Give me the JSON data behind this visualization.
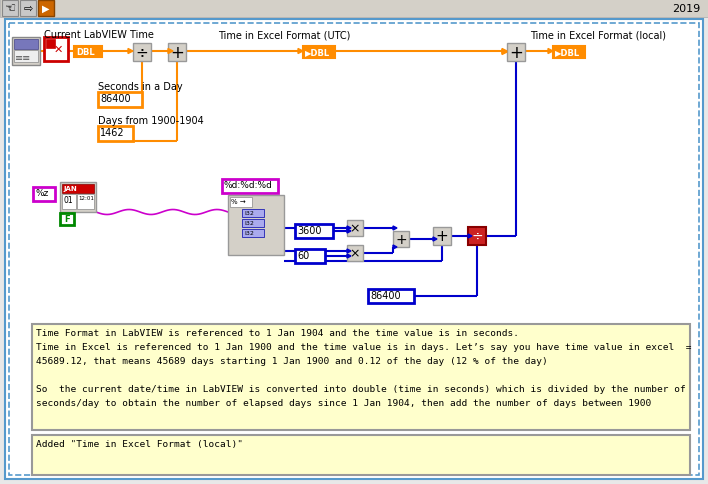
{
  "bg_color": "#e8e8e8",
  "toolbar_bg": "#d4d0c8",
  "diagram_bg": "#ffffff",
  "diagram_border_color": "#5599cc",
  "year_text": "2019",
  "note1_line1": "Time Format in LabVIEW is referenced to 1 Jan 1904 and the time value is in seconds.",
  "note1_line2": "Time in Excel is referenced to 1 Jan 1900 and the time value is in days. Let’s say you have time value in excel  =",
  "note1_line3": "45689.12, that means 45689 days starting 1 Jan 1900 and 0.12 of the day (12 % of the day)",
  "note1_line4": "",
  "note1_line5": "So  the current date/time in LabVIEW is converted into double (time in seconds) which is divided by the number of",
  "note1_line6": "seconds/day to obtain the number of elapsed days since 1 Jan 1904, then add the number of days between 1900",
  "note2_text": "Added \"Time in Excel Format (local)\"",
  "wire_orange": "#FF8C00",
  "wire_blue": "#0000CC",
  "wire_magenta": "#CC00CC",
  "orange_border": "#FF8C00",
  "orange_fill": "#FF8C00",
  "blue_border": "#0000CC",
  "magenta_border": "#CC00CC",
  "green_border": "#008800",
  "red_border": "#CC0000",
  "note_bg": "#FFFFCC",
  "note_border": "#999999",
  "gray_block": "#d4d0c8",
  "gray_border": "#999999"
}
